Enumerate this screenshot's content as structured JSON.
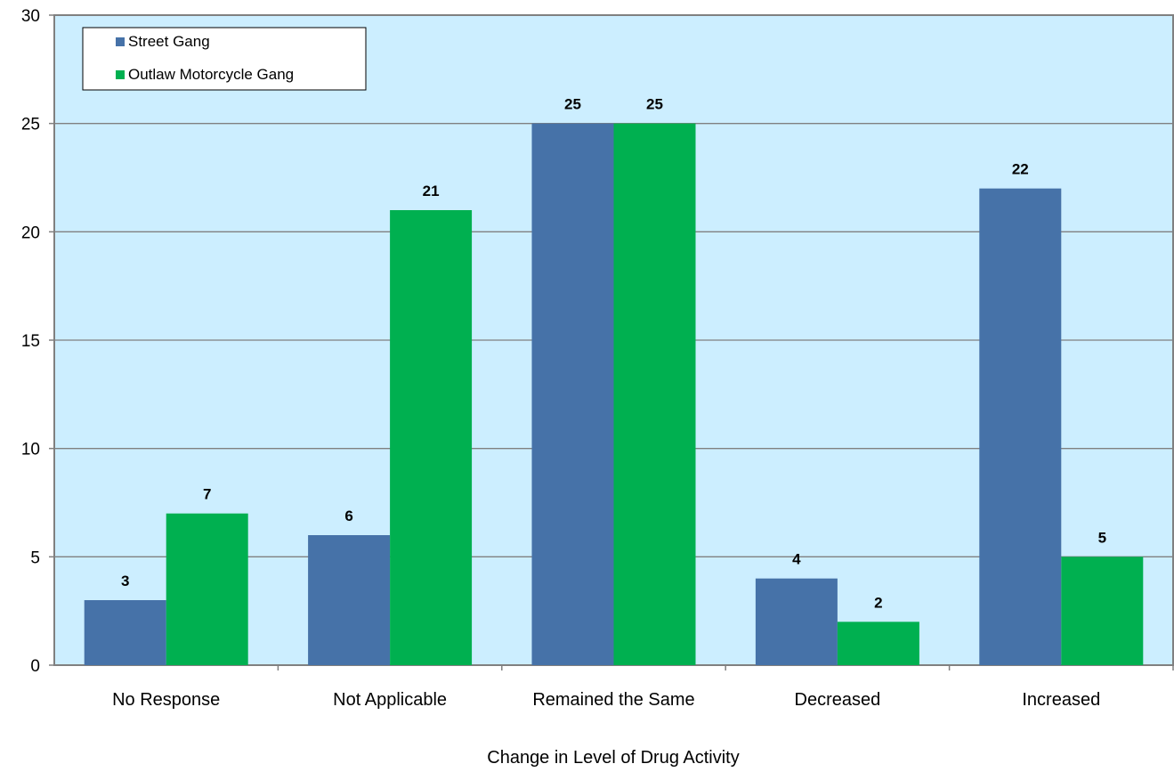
{
  "chart_data": {
    "type": "bar",
    "categories": [
      "No Response",
      "Not Applicable",
      "Remained the Same",
      "Decreased",
      "Increased"
    ],
    "series": [
      {
        "name": "Street Gang",
        "values": [
          3,
          6,
          25,
          4,
          22
        ],
        "color": "#4672a8"
      },
      {
        "name": "Outlaw Motorcycle Gang",
        "values": [
          7,
          21,
          25,
          2,
          5
        ],
        "color": "#00b050"
      }
    ],
    "title": "",
    "xlabel": "Change in Level of Drug Activity",
    "ylabel": "",
    "ylim": [
      0,
      30
    ],
    "yticks": [
      0,
      5,
      10,
      15,
      20,
      25,
      30
    ],
    "grid": true,
    "legend_position": "top-left",
    "plot_background": "#cceeff",
    "data_labels": true
  }
}
